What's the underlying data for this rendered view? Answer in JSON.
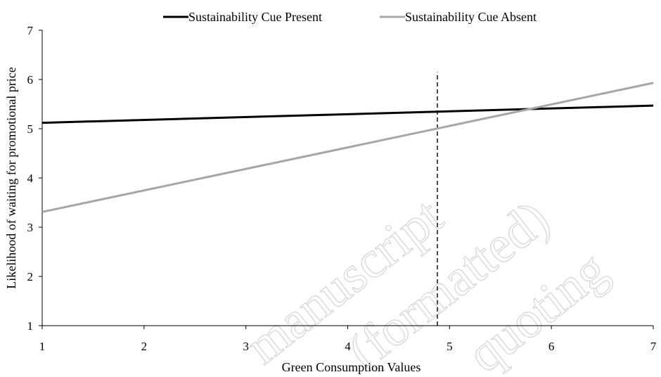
{
  "chart_data": {
    "type": "line",
    "title": "",
    "xlabel": "Green Consumption Values",
    "ylabel": "Likelihood of waiting for promotional price",
    "xlim": [
      1,
      7
    ],
    "ylim": [
      1,
      7
    ],
    "xticks": [
      1,
      2,
      3,
      4,
      5,
      6,
      7
    ],
    "yticks": [
      1,
      2,
      3,
      4,
      5,
      6,
      7
    ],
    "grid": false,
    "legend_position": "top",
    "series": [
      {
        "name": "Sustainability Cue Present",
        "color": "#000000",
        "x": [
          1,
          7
        ],
        "y": [
          5.12,
          5.47
        ]
      },
      {
        "name": "Sustainability Cue Absent",
        "color": "#a6a6a6",
        "x": [
          1,
          7
        ],
        "y": [
          3.31,
          5.93
        ]
      }
    ],
    "reference_line": {
      "orientation": "vertical",
      "x": 4.88,
      "style": "dashed",
      "y_top": 6.15
    },
    "watermark": [
      "manuscript",
      "(formatted)",
      "quoting"
    ]
  }
}
